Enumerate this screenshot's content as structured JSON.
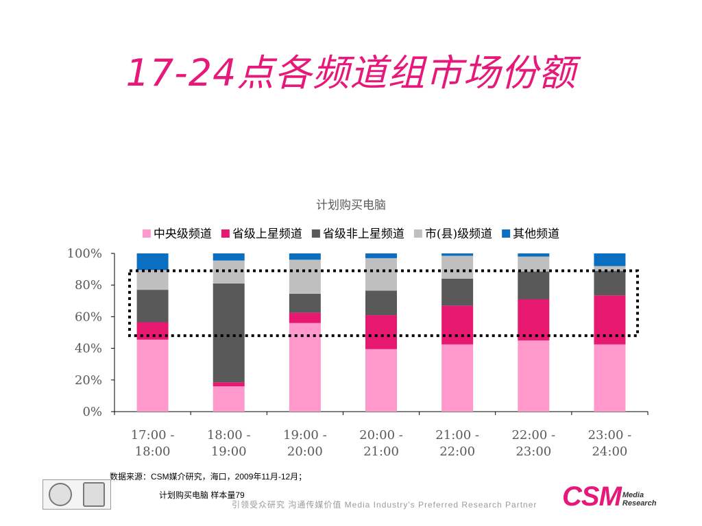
{
  "slide": {
    "title": "17-24点各频道组市场份额",
    "source": "数据来源：CSM媒介研究，海口，2009年11月-12月；",
    "sample": "计划购买电脑 样本量79",
    "slogan": "引领受众研究  沟通传媒价值    Media Industry's Preferred Research Partner",
    "logo_main": "CSM",
    "logo_sub1": "Media",
    "logo_sub2": "Research"
  },
  "chart_data": {
    "type": "bar",
    "stacked": true,
    "title": "计划购买电脑",
    "categories": [
      "17:00 - 18:00",
      "18:00 - 19:00",
      "19:00 - 20:00",
      "20:00 - 21:00",
      "21:00 - 22:00",
      "22:00 - 23:00",
      "23:00 - 24:00"
    ],
    "y_ticks": [
      "0%",
      "20%",
      "40%",
      "60%",
      "80%",
      "100%"
    ],
    "ylim": [
      0,
      100
    ],
    "legend_position": "top",
    "series": [
      {
        "name": "中央级频道",
        "color": "#ff99cc",
        "values": [
          45.5,
          16,
          56,
          39.5,
          42.5,
          45,
          42.5
        ]
      },
      {
        "name": "省级上星频道",
        "color": "#e6186f",
        "values": [
          11,
          2.5,
          6.5,
          21.5,
          24.5,
          26,
          31
        ]
      },
      {
        "name": "省级非上星频道",
        "color": "#595959",
        "values": [
          20.5,
          62.5,
          12,
          15.5,
          17,
          17.5,
          15.5
        ]
      },
      {
        "name": "市(县)级频道",
        "color": "#bfbfbf",
        "values": [
          12.5,
          14.5,
          21.5,
          20.5,
          14.5,
          9.5,
          3
        ]
      },
      {
        "name": "其他频道",
        "color": "#0b6fc1",
        "values": [
          10.5,
          4.5,
          4,
          3,
          1.5,
          2,
          8
        ]
      }
    ],
    "highlight": {
      "style": "dotted-box",
      "y_range": [
        48,
        89
      ]
    }
  }
}
